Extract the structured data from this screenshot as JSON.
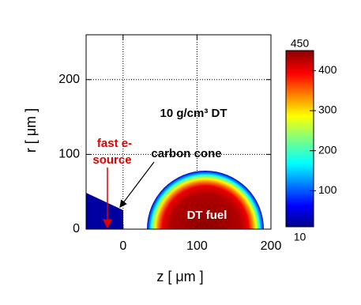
{
  "chart_data": {
    "type": "heatmap",
    "x_label": "z  [ μm ]",
    "y_label": "r  [ μm ]",
    "xlim": [
      -50,
      200
    ],
    "xticks": [
      0,
      100,
      200
    ],
    "ylim": [
      0,
      260
    ],
    "yticks": [
      0,
      100,
      200
    ],
    "grid": true,
    "colorbar": {
      "clim": [
        10,
        450
      ],
      "ticks": [
        100,
        200,
        300,
        400
      ],
      "colormap": "jet"
    },
    "annotations": {
      "density": "10 g/cm³ DT",
      "source": [
        "fast e-",
        "source"
      ],
      "cone": "carbon cone",
      "fuel": "DT fuel"
    }
  }
}
